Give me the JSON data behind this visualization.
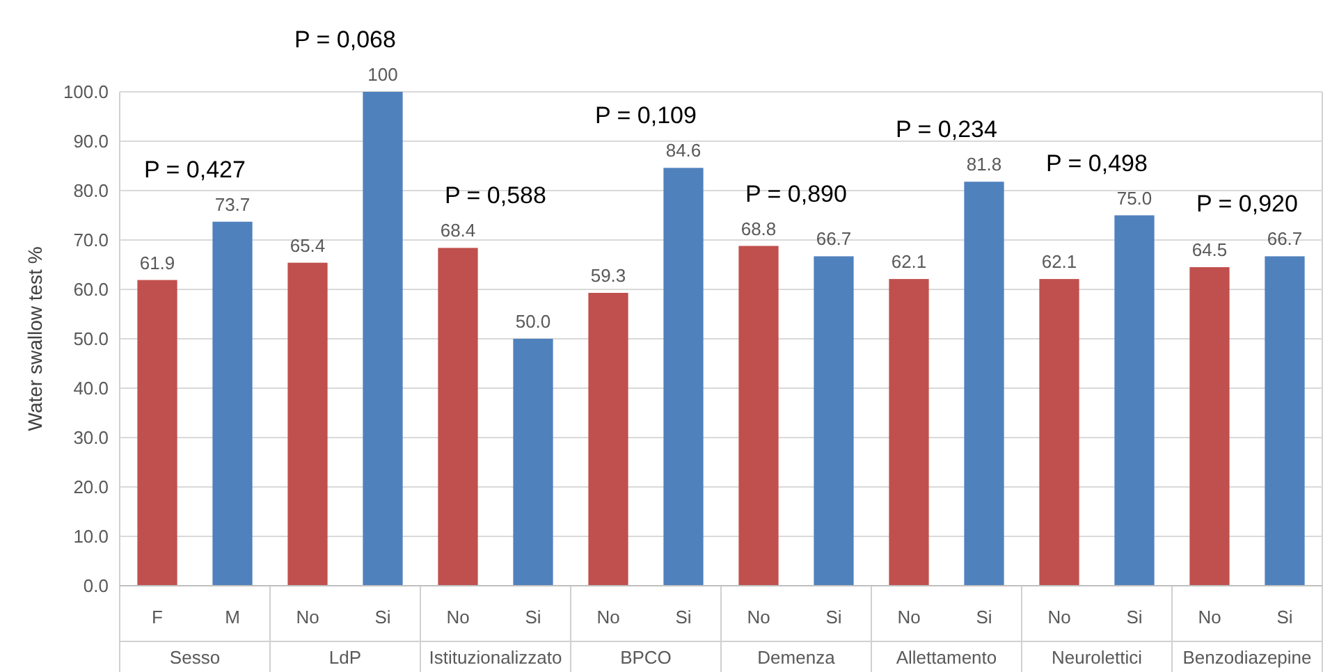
{
  "chart_data": {
    "type": "bar",
    "ylabel": "Water swallow test %",
    "categories": [
      "F",
      "M",
      "No",
      "Si",
      "No",
      "Si",
      "No",
      "Si",
      "No",
      "Si",
      "No",
      "Si",
      "No",
      "Si",
      "No",
      "Si"
    ],
    "values": [
      61.9,
      73.7,
      65.4,
      100,
      68.4,
      50.0,
      59.3,
      84.6,
      68.8,
      66.7,
      62.1,
      81.8,
      62.1,
      75.0,
      64.5,
      66.7
    ],
    "value_labels": [
      "61.9",
      "73.7",
      "65.4",
      "100",
      "68.4",
      "50.0",
      "59.3",
      "84.6",
      "68.8",
      "66.7",
      "62.1",
      "81.8",
      "62.1",
      "75.0",
      "64.5",
      "66.7"
    ],
    "colors": [
      "#c0504d",
      "#4f81bd",
      "#c0504d",
      "#4f81bd",
      "#c0504d",
      "#4f81bd",
      "#c0504d",
      "#4f81bd",
      "#c0504d",
      "#4f81bd",
      "#c0504d",
      "#4f81bd",
      "#c0504d",
      "#4f81bd",
      "#c0504d",
      "#4f81bd"
    ],
    "ylim": [
      0,
      100
    ],
    "yticks": [
      {
        "value": 0,
        "label": "0.0"
      },
      {
        "value": 10,
        "label": "10.0"
      },
      {
        "value": 20,
        "label": "20.0"
      },
      {
        "value": 30,
        "label": "30.0"
      },
      {
        "value": 40,
        "label": "40.0"
      },
      {
        "value": 50,
        "label": "50.0"
      },
      {
        "value": 60,
        "label": "60.0"
      },
      {
        "value": 70,
        "label": "70.0"
      },
      {
        "value": 80,
        "label": "80.0"
      },
      {
        "value": 90,
        "label": "90.0"
      },
      {
        "value": 100,
        "label": "100.0"
      }
    ],
    "grid": "y",
    "annotations": [
      "Sesso",
      "P = 0,427",
      "LdP",
      "P = 0,068",
      "Istituzionalizzato",
      "P = 0,588",
      "BPCO",
      "P = 0,109",
      "Demenza",
      "P = 0,890",
      "Allettamento",
      "P = 0,234",
      "Neurolettici",
      "P = 0,498",
      "Benzodiazepine",
      "P = 0,920"
    ]
  }
}
